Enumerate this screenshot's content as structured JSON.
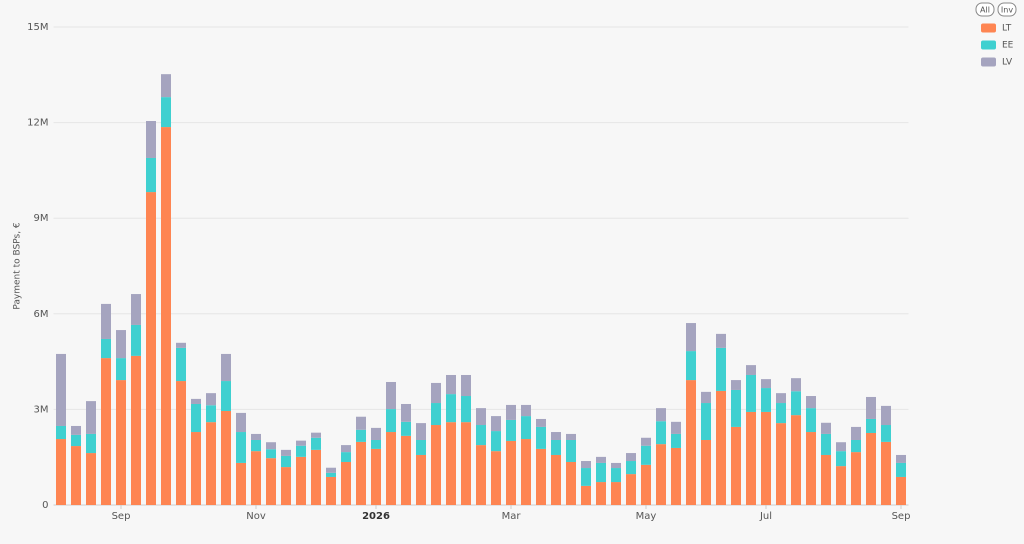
{
  "chart_data": {
    "type": "stacked_bar",
    "y_label": "Payment to BSPs, €",
    "controls": [
      "All",
      "Inv"
    ],
    "categories": [
      null,
      null,
      null,
      null,
      "Sep",
      null,
      null,
      null,
      null,
      null,
      null,
      null,
      null,
      "Nov",
      null,
      null,
      null,
      null,
      null,
      null,
      null,
      "2026",
      null,
      null,
      null,
      null,
      null,
      null,
      null,
      null,
      "Mar",
      null,
      null,
      null,
      null,
      null,
      null,
      null,
      null,
      "May",
      null,
      null,
      null,
      null,
      null,
      null,
      null,
      "Jul",
      null,
      null,
      null,
      null,
      null,
      null,
      null,
      null,
      "Sep"
    ],
    "series": [
      {
        "name": "LT",
        "color": "#fe8552",
        "values": [
          2070000,
          1850000,
          1630000,
          4610000,
          3920000,
          4680000,
          9820000,
          11860000,
          3890000,
          2290000,
          2600000,
          2950000,
          1320000,
          1690000,
          1470000,
          1190000,
          1510000,
          1730000,
          880000,
          1350000,
          1980000,
          1760000,
          2290000,
          2170000,
          1570000,
          2510000,
          2600000,
          2600000,
          1880000,
          1690000,
          2010000,
          2070000,
          1760000,
          1570000,
          1350000,
          600000,
          720000,
          720000,
          970000,
          1260000,
          1910000,
          1790000,
          3920000,
          2040000,
          3580000,
          2450000,
          2920000,
          2920000,
          2570000,
          2820000,
          2290000,
          1570000,
          1220000,
          1660000,
          2260000,
          1980000,
          880000
        ]
      },
      {
        "name": "EE",
        "color": "#3fd0d0",
        "values": [
          410000,
          350000,
          600000,
          600000,
          690000,
          970000,
          1070000,
          940000,
          1040000,
          880000,
          530000,
          940000,
          970000,
          350000,
          280000,
          350000,
          350000,
          380000,
          130000,
          310000,
          380000,
          280000,
          720000,
          440000,
          470000,
          690000,
          880000,
          820000,
          630000,
          630000,
          660000,
          720000,
          690000,
          470000,
          690000,
          560000,
          600000,
          440000,
          410000,
          600000,
          720000,
          440000,
          910000,
          1160000,
          1350000,
          1160000,
          1160000,
          750000,
          630000,
          750000,
          750000,
          660000,
          470000,
          380000,
          440000,
          530000,
          440000
        ]
      },
      {
        "name": "LV",
        "color": "#a5a4bf",
        "values": [
          2260000,
          280000,
          1030000,
          1100000,
          880000,
          970000,
          1160000,
          720000,
          160000,
          160000,
          380000,
          850000,
          600000,
          190000,
          220000,
          190000,
          160000,
          160000,
          160000,
          220000,
          410000,
          380000,
          850000,
          560000,
          530000,
          630000,
          600000,
          660000,
          530000,
          470000,
          470000,
          350000,
          250000,
          250000,
          190000,
          220000,
          190000,
          160000,
          250000,
          250000,
          410000,
          380000,
          880000,
          350000,
          440000,
          310000,
          310000,
          280000,
          310000,
          410000,
          380000,
          350000,
          280000,
          410000,
          690000,
          600000,
          250000
        ]
      }
    ],
    "ylim": [
      0,
      15000000
    ],
    "yticks": [
      0,
      {
        "value": 3000000,
        "label": "3M"
      },
      {
        "value": 6000000,
        "label": "6M"
      },
      {
        "value": 9000000,
        "label": "9M"
      },
      {
        "value": 12000000,
        "label": "12M"
      },
      {
        "value": 15000000,
        "label": "15M"
      }
    ],
    "grid": true
  }
}
